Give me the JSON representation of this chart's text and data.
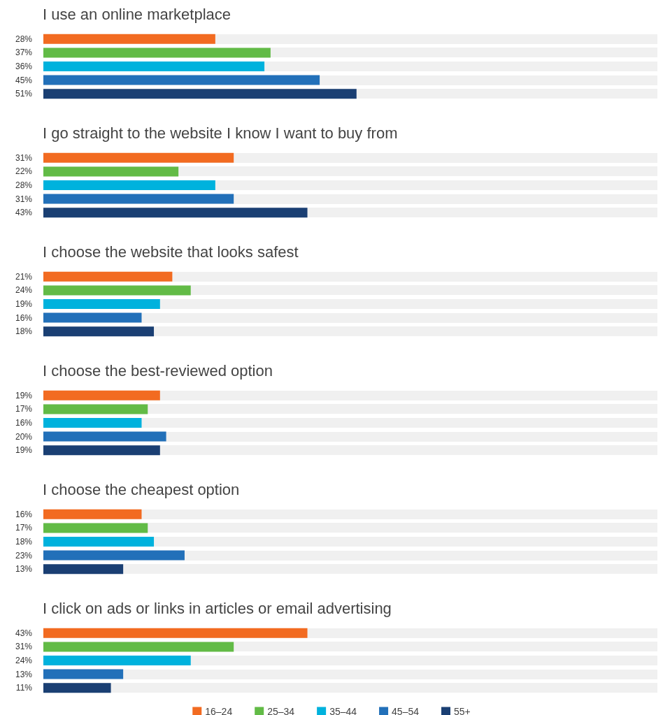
{
  "chart_data": [
    {
      "type": "bar",
      "orientation": "horizontal",
      "stacked": true,
      "title": "I use an online marketplace",
      "categories": [
        null,
        null,
        null,
        null,
        null
      ],
      "xlim": [
        0,
        100
      ],
      "tick_labels": false,
      "legend": false,
      "series": [
        {
          "color": "#f26b21",
          "values": [
            28,
            null,
            null,
            null,
            null
          ],
          "value_labels": [
            "28%",
            null,
            null,
            null,
            null
          ]
        },
        {
          "color": "#62bb46",
          "values": [
            null,
            37,
            null,
            null,
            null
          ],
          "value_labels": [
            null,
            "37%",
            null,
            null,
            null
          ]
        },
        {
          "color": "#00b2dd",
          "values": [
            null,
            null,
            36,
            null,
            null
          ],
          "value_labels": [
            null,
            null,
            "36%",
            null,
            null
          ]
        },
        {
          "color": "#2270b9",
          "values": [
            null,
            null,
            null,
            45,
            null
          ],
          "value_labels": [
            null,
            null,
            null,
            "45%",
            null
          ]
        },
        {
          "color": "#1a3f73",
          "values": [
            null,
            null,
            null,
            null,
            51
          ],
          "value_labels": [
            null,
            null,
            null,
            null,
            "51%"
          ]
        }
      ]
    },
    {
      "type": "bar",
      "orientation": "horizontal",
      "stacked": true,
      "title": "I go straight to the website I know I want to buy from",
      "categories": [
        null,
        null,
        null,
        null,
        null
      ],
      "xlim": [
        0,
        100
      ],
      "tick_labels": false,
      "legend": false,
      "series": [
        {
          "color": "#f26b21",
          "values": [
            31,
            null,
            null,
            null,
            null
          ],
          "value_labels": [
            "31%",
            null,
            null,
            null,
            null
          ]
        },
        {
          "color": "#62bb46",
          "values": [
            null,
            22,
            null,
            null,
            null
          ],
          "value_labels": [
            null,
            "22%",
            null,
            null,
            null
          ]
        },
        {
          "color": "#00b2dd",
          "values": [
            null,
            null,
            28,
            null,
            null
          ],
          "value_labels": [
            null,
            null,
            "28%",
            null,
            null
          ]
        },
        {
          "color": "#2270b9",
          "values": [
            null,
            null,
            null,
            31,
            null
          ],
          "value_labels": [
            null,
            null,
            null,
            "31%",
            null
          ]
        },
        {
          "color": "#1a3f73",
          "values": [
            null,
            null,
            null,
            null,
            43
          ],
          "value_labels": [
            null,
            null,
            null,
            null,
            "43%"
          ]
        }
      ]
    },
    {
      "type": "bar",
      "orientation": "horizontal",
      "stacked": true,
      "title": "I choose the website that looks safest",
      "categories": [
        null,
        null,
        null,
        null,
        null
      ],
      "xlim": [
        0,
        100
      ],
      "tick_labels": false,
      "legend": false,
      "series": [
        {
          "color": "#f26b21",
          "values": [
            21,
            null,
            null,
            null,
            null
          ],
          "value_labels": [
            "21%",
            null,
            null,
            null,
            null
          ]
        },
        {
          "color": "#62bb46",
          "values": [
            null,
            24,
            null,
            null,
            null
          ],
          "value_labels": [
            null,
            "24%",
            null,
            null,
            null
          ]
        },
        {
          "color": "#00b2dd",
          "values": [
            null,
            null,
            19,
            null,
            null
          ],
          "value_labels": [
            null,
            null,
            "19%",
            null,
            null
          ]
        },
        {
          "color": "#2270b9",
          "values": [
            null,
            null,
            null,
            16,
            null
          ],
          "value_labels": [
            null,
            null,
            null,
            "16%",
            null
          ]
        },
        {
          "color": "#1a3f73",
          "values": [
            null,
            null,
            null,
            null,
            18
          ],
          "value_labels": [
            null,
            null,
            null,
            null,
            "18%"
          ]
        }
      ]
    },
    {
      "type": "bar",
      "orientation": "horizontal",
      "stacked": true,
      "title": "I choose the best-reviewed option",
      "categories": [
        null,
        null,
        null,
        null,
        null
      ],
      "xlim": [
        0,
        100
      ],
      "tick_labels": false,
      "legend": false,
      "series": [
        {
          "color": "#f26b21",
          "values": [
            19,
            null,
            null,
            null,
            null
          ],
          "value_labels": [
            "19%",
            null,
            null,
            null,
            null
          ]
        },
        {
          "color": "#62bb46",
          "values": [
            null,
            17,
            null,
            null,
            null
          ],
          "value_labels": [
            null,
            "17%",
            null,
            null,
            null
          ]
        },
        {
          "color": "#00b2dd",
          "values": [
            null,
            null,
            16,
            null,
            null
          ],
          "value_labels": [
            null,
            null,
            "16%",
            null,
            null
          ]
        },
        {
          "color": "#2270b9",
          "values": [
            null,
            null,
            null,
            20,
            null
          ],
          "value_labels": [
            null,
            null,
            null,
            "20%",
            null
          ]
        },
        {
          "color": "#1a3f73",
          "values": [
            null,
            null,
            null,
            null,
            19
          ],
          "value_labels": [
            null,
            null,
            null,
            null,
            "19%"
          ]
        }
      ]
    },
    {
      "type": "bar",
      "orientation": "horizontal",
      "stacked": true,
      "title": "I choose the cheapest option",
      "categories": [
        null,
        null,
        null,
        null,
        null
      ],
      "xlim": [
        0,
        100
      ],
      "tick_labels": false,
      "legend": false,
      "series": [
        {
          "color": "#f26b21",
          "values": [
            16,
            null,
            null,
            null,
            null
          ],
          "value_labels": [
            "16%",
            null,
            null,
            null,
            null
          ]
        },
        {
          "color": "#62bb46",
          "values": [
            null,
            17,
            null,
            null,
            null
          ],
          "value_labels": [
            null,
            "17%",
            null,
            null,
            null
          ]
        },
        {
          "color": "#00b2dd",
          "values": [
            null,
            null,
            18,
            null,
            null
          ],
          "value_labels": [
            null,
            null,
            "18%",
            null,
            null
          ]
        },
        {
          "color": "#2270b9",
          "values": [
            null,
            null,
            null,
            23,
            null
          ],
          "value_labels": [
            null,
            null,
            null,
            "23%",
            null
          ]
        },
        {
          "color": "#1a3f73",
          "values": [
            null,
            null,
            null,
            null,
            13
          ],
          "value_labels": [
            null,
            null,
            null,
            null,
            "13%"
          ]
        }
      ]
    },
    {
      "type": "bar",
      "orientation": "horizontal",
      "stacked": true,
      "title": "I click on ads or links in articles or email advertising",
      "categories": [
        null,
        null,
        null,
        null,
        null
      ],
      "xlim": [
        0,
        100
      ],
      "tick_labels": false,
      "legend": "bottom",
      "series": [
        {
          "name": "16–24",
          "color": "#f26b21",
          "values": [
            43,
            null,
            null,
            null,
            null
          ],
          "value_labels": [
            "43%",
            null,
            null,
            null,
            null
          ]
        },
        {
          "name": "25–34",
          "color": "#62bb46",
          "values": [
            null,
            31,
            null,
            null,
            null
          ],
          "value_labels": [
            null,
            "31%",
            null,
            null,
            null
          ]
        },
        {
          "name": "35–44",
          "color": "#00b2dd",
          "values": [
            null,
            null,
            24,
            null,
            null
          ],
          "value_labels": [
            null,
            null,
            "24%",
            null,
            null
          ]
        },
        {
          "name": "45–54",
          "color": "#2270b9",
          "values": [
            null,
            null,
            null,
            13,
            null
          ],
          "value_labels": [
            null,
            null,
            null,
            "13%",
            null
          ]
        },
        {
          "name": "55+",
          "color": "#1a3f73",
          "values": [
            null,
            null,
            null,
            null,
            11
          ],
          "value_labels": [
            null,
            null,
            null,
            null,
            "11%"
          ]
        }
      ]
    }
  ]
}
